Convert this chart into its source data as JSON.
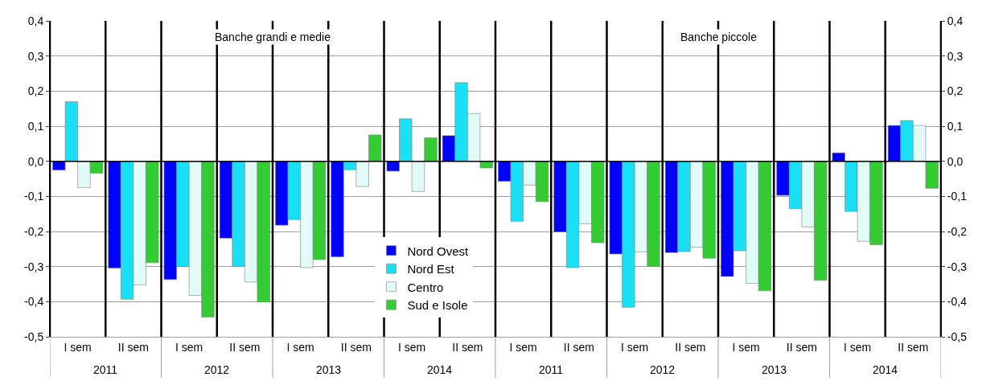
{
  "chart_data": {
    "type": "bar",
    "categories": [
      "I sem",
      "II sem",
      "I sem",
      "II sem",
      "I sem",
      "II sem",
      "I sem",
      "II sem",
      "I sem",
      "II sem",
      "I sem",
      "II sem",
      "I sem",
      "II sem",
      "I sem",
      "II sem"
    ],
    "series": [
      {
        "name": "Nord Ovest",
        "color": "#0000ff",
        "values": [
          -0.025,
          -0.304,
          -0.337,
          -0.219,
          -0.182,
          -0.272,
          -0.028,
          0.073,
          -0.057,
          -0.201,
          -0.264,
          -0.26,
          -0.328,
          -0.097,
          0.024,
          0.102
        ]
      },
      {
        "name": "Nord Est",
        "color": "#1ae0f5",
        "values": [
          0.17,
          -0.393,
          -0.3,
          -0.299,
          -0.166,
          -0.024,
          0.121,
          0.224,
          -0.171,
          -0.303,
          -0.416,
          -0.257,
          -0.255,
          -0.135,
          -0.143,
          0.116
        ]
      },
      {
        "name": "Centro",
        "color": "#e0fbf8",
        "values": [
          -0.075,
          -0.352,
          -0.382,
          -0.344,
          -0.303,
          -0.072,
          -0.086,
          0.136,
          -0.068,
          -0.178,
          -0.258,
          -0.245,
          -0.348,
          -0.187,
          -0.228,
          0.102
        ]
      },
      {
        "name": "Sud e Isole",
        "color": "#33cc33",
        "values": [
          -0.034,
          -0.289,
          -0.444,
          -0.401,
          -0.28,
          0.075,
          0.067,
          -0.019,
          -0.115,
          -0.232,
          -0.299,
          -0.276,
          -0.369,
          -0.339,
          -0.238,
          -0.077
        ]
      }
    ],
    "annotations": [
      "Banche grandi e medie",
      "Banche piccole",
      "2011",
      "2012",
      "2013",
      "2014",
      "2011",
      "2012",
      "2013",
      "2014"
    ],
    "ylim": [
      -0.5,
      0.4
    ],
    "yticks": [
      {
        "value": -0.5,
        "label": "-0,5"
      },
      {
        "value": -0.4,
        "label": "-0,4"
      },
      {
        "value": -0.3,
        "label": "-0,3"
      },
      {
        "value": -0.2,
        "label": "-0,2"
      },
      {
        "value": -0.1,
        "label": "-0,1"
      },
      {
        "value": 0,
        "label": "0,0"
      },
      {
        "value": 0.1,
        "label": "0,1"
      },
      {
        "value": 0.2,
        "label": "0,2"
      },
      {
        "value": 0.3,
        "label": "0,3"
      },
      {
        "value": 0.4,
        "label": "0,4"
      }
    ],
    "y2lim": [
      -0.5,
      0.4
    ],
    "y2ticks": [
      {
        "value": -0.5,
        "label": "-0,5"
      },
      {
        "value": -0.4,
        "label": "-0,4"
      },
      {
        "value": -0.3,
        "label": "-0,3"
      },
      {
        "value": -0.2,
        "label": "-0,2"
      },
      {
        "value": -0.1,
        "label": "-0,1"
      },
      {
        "value": 0,
        "label": "0,0"
      },
      {
        "value": 0.1,
        "label": "0,1"
      },
      {
        "value": 0.2,
        "label": "0,2"
      },
      {
        "value": 0.3,
        "label": "0,3"
      },
      {
        "value": 0.4,
        "label": "0,4"
      }
    ],
    "grid": true,
    "legend": "bottom"
  }
}
